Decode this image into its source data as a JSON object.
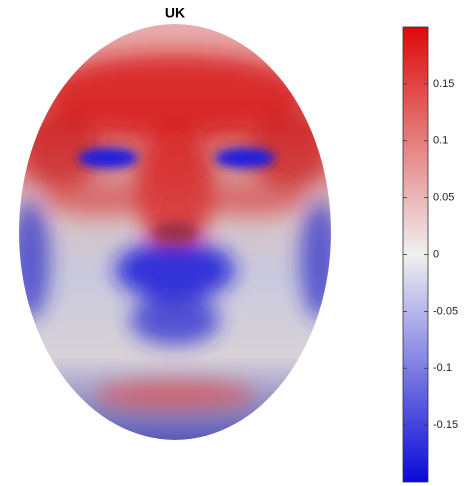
{
  "chart_data": {
    "type": "colorbar",
    "title": "UK",
    "clim": [
      -0.2,
      0.2
    ],
    "ticks": [
      0.15,
      0.1,
      0.05,
      0,
      -0.05,
      -0.1,
      -0.15
    ],
    "colormap": [
      "#0a0ad8",
      "#f0f0f0",
      "#dc0a0a"
    ]
  }
}
